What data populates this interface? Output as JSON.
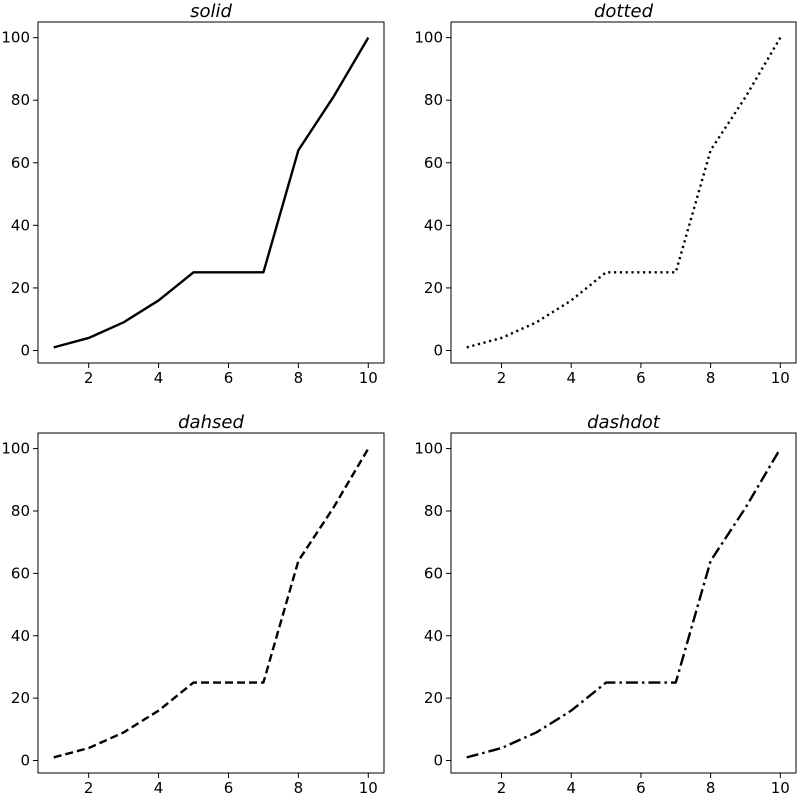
{
  "chart_data": [
    {
      "type": "line",
      "title": "solid",
      "line_style": "solid",
      "color": "#000000",
      "x": [
        1,
        2,
        3,
        4,
        5,
        6,
        7,
        8,
        9,
        10
      ],
      "series": [
        {
          "values": [
            1,
            4,
            9,
            16,
            25,
            25,
            25,
            64,
            81,
            100
          ]
        }
      ],
      "xlim": [
        0.55,
        10.45
      ],
      "ylim": [
        -4,
        105
      ],
      "xticks": [
        2,
        4,
        6,
        8,
        10
      ],
      "yticks": [
        0,
        20,
        40,
        60,
        80,
        100
      ],
      "grid": false
    },
    {
      "type": "line",
      "title": "dotted",
      "line_style": "dotted",
      "color": "#000000",
      "x": [
        1,
        2,
        3,
        4,
        5,
        6,
        7,
        8,
        9,
        10
      ],
      "series": [
        {
          "values": [
            1,
            4,
            9,
            16,
            25,
            25,
            25,
            64,
            81,
            100
          ]
        }
      ],
      "xlim": [
        0.55,
        10.45
      ],
      "ylim": [
        -4,
        105
      ],
      "xticks": [
        2,
        4,
        6,
        8,
        10
      ],
      "yticks": [
        0,
        20,
        40,
        60,
        80,
        100
      ],
      "grid": false
    },
    {
      "type": "line",
      "title": "dahsed",
      "line_style": "dashed",
      "color": "#000000",
      "x": [
        1,
        2,
        3,
        4,
        5,
        6,
        7,
        8,
        9,
        10
      ],
      "series": [
        {
          "values": [
            1,
            4,
            9,
            16,
            25,
            25,
            25,
            64,
            81,
            100
          ]
        }
      ],
      "xlim": [
        0.55,
        10.45
      ],
      "ylim": [
        -4,
        105
      ],
      "xticks": [
        2,
        4,
        6,
        8,
        10
      ],
      "yticks": [
        0,
        20,
        40,
        60,
        80,
        100
      ],
      "grid": false
    },
    {
      "type": "line",
      "title": "dashdot",
      "line_style": "dashdot",
      "color": "#000000",
      "x": [
        1,
        2,
        3,
        4,
        5,
        6,
        7,
        8,
        9,
        10
      ],
      "series": [
        {
          "values": [
            1,
            4,
            9,
            16,
            25,
            25,
            25,
            64,
            81,
            100
          ]
        }
      ],
      "xlim": [
        0.55,
        10.45
      ],
      "ylim": [
        -4,
        105
      ],
      "xticks": [
        2,
        4,
        6,
        8,
        10
      ],
      "yticks": [
        0,
        20,
        40,
        60,
        80,
        100
      ],
      "grid": false
    }
  ]
}
